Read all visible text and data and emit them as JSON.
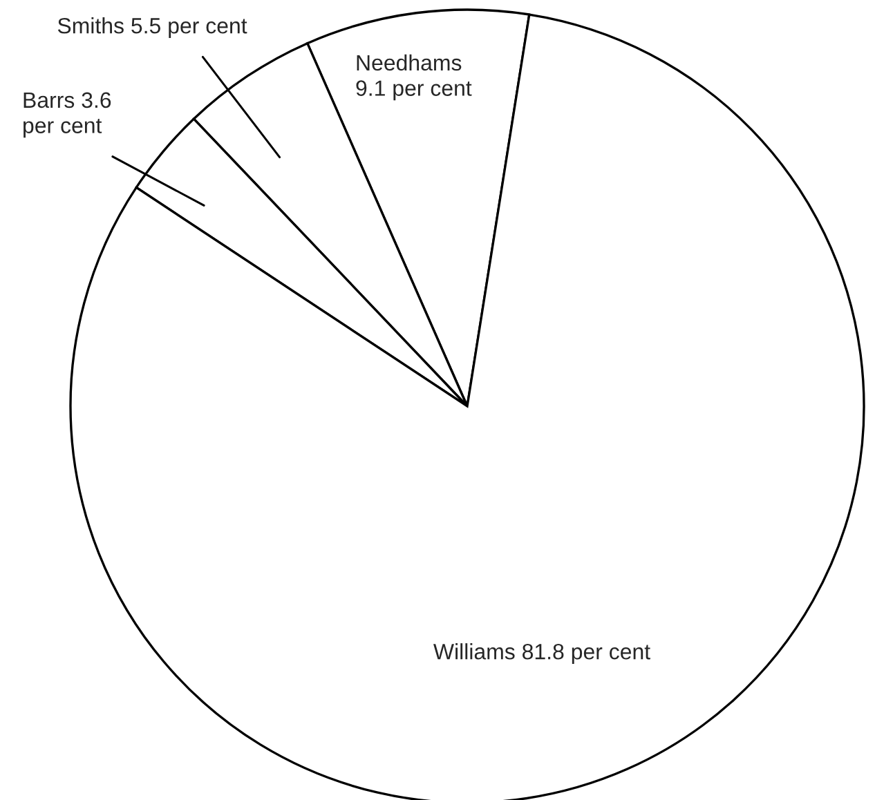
{
  "chart_data": {
    "type": "pie",
    "categories": [
      "Needhams",
      "Smiths",
      "Barrs",
      "Williams"
    ],
    "values": [
      9.1,
      5.5,
      3.6,
      81.8
    ],
    "value_labels": [
      "9.1 per cent",
      "5.5 per cent",
      "3.6 per cent",
      "81.8 per cent"
    ],
    "colors": [
      "#ffffff",
      "#ffffff",
      "#ffffff",
      "#ffffff"
    ]
  }
}
